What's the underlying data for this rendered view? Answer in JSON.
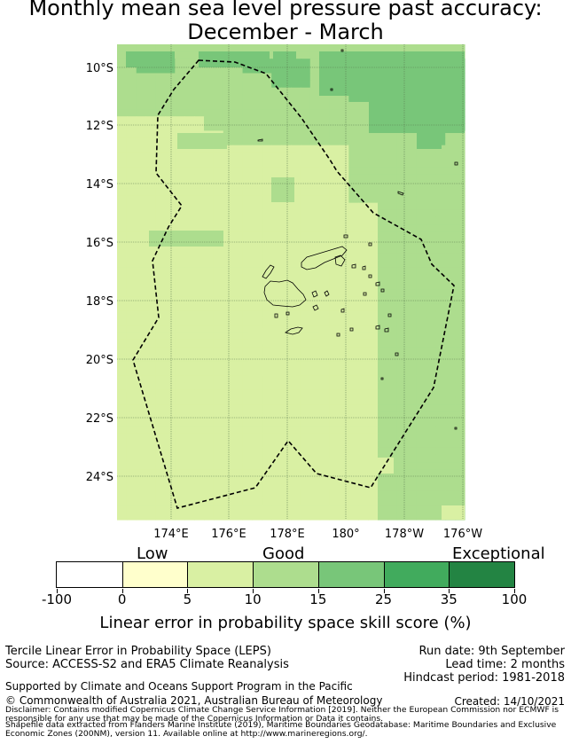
{
  "title_line1": "Monthly mean sea level pressure past accuracy:",
  "title_line2": "December - March",
  "map": {
    "lat_ticks": [
      "10°S",
      "12°S",
      "14°S",
      "16°S",
      "18°S",
      "20°S",
      "22°S",
      "24°S"
    ],
    "lon_ticks": [
      "174°E",
      "176°E",
      "178°E",
      "180°",
      "178°W",
      "176°W"
    ],
    "colors": {
      "c1": "#ffffcc",
      "c2": "#d9f0a3",
      "c3": "#addd8e",
      "c4": "#78c679",
      "c5": "#41ab5d",
      "c6": "#238443",
      "land": "#000000",
      "eez": "#000000"
    },
    "grid_rows": [
      "333333333333333333333333333333333333",
      "333333333333333333333333333333333333",
      "334444333333344444443333444444444444",
      "334444333333344444443333444444444444",
      "333333333333333344443333444444444444",
      "333333333333333344443333444444444444",
      "333333333333333333333333444444444444",
      "333333333333333333333333444444444444",
      "333333333333333333333333333344444444",
      "333333333333333333333333333344444444",
      "222222222333333333333333333344444444",
      "222222222333333333333333333344444444",
      "222222222223333333333333333333334433",
      "222222222223333333333333333333334433",
      "222222222222222222222222333333333333",
      "222222222222222222222222333333333333",
      "222222222222222222222222333333333333",
      "222222222222222222222222333333333333",
      "222222222222222222222222333333333333",
      "222222222222222222222222333333333333",
      "222222222222222222222222333333333333",
      "222222222222222222222222333333333333",
      "222222222222222222222222222333333333",
      "222222222222222222222222222333333333",
      "222222222222222222222222222333333333",
      "222222222222222222222222222333333333",
      "222222222222222222222222222333333333",
      "222222222222222222222222222333333333",
      "222222222222222222222222222333333333",
      "222222222222222222222222222333333333",
      "222222222222222222222222222333333333",
      "222222222222222222222222222333333333",
      "222222222222222222222222222333333333",
      "222222222222222222222222222333333333",
      "222222222222222222222222222333333333",
      "222222222222222222222222222333333333",
      "222222222222222222222222222333333333",
      "222222222222222222222222222333333333",
      "222222222222222222222222222333333333",
      "222222222222222222222222222333333333",
      "222222222222222222222222222333333333",
      "222222222222222222222222222333333333",
      "222222222222222222222222222333333333",
      "222222222222222222222222222333333333",
      "222222222222222222222222222333333333",
      "222222222222222222222222222333333333",
      "222222222222222222222222222333333333",
      "222222222222222222222222222333333333",
      "222222222222222222222222222333333333",
      "222222222222222222222222222333333333",
      "222222222222222222222222222333333333",
      "222222222222222222222222222333333333",
      "222222222222222222222222222333333333",
      "222222222222222222222222222333333333",
      "222222222222222222222222222333333333",
      "222222222222222222222222222333333333",
      "222222222222222222222222222333333333",
      "222222222222222222222222222333333333",
      "222222222222222222222222222333333333",
      "222222222222222222222222222333333333",
      "222222222222222222222222222333333333",
      "222222222222222222222222222333333333",
      "222222222222222222222222222333333333",
      "222222222222222222222222222333333333",
      "222222222222222222222222222333333333",
      "222222222222222222222222222333333333"
    ]
  },
  "legend": {
    "low": "Low",
    "good": "Good",
    "exceptional": "Exceptional",
    "ticks": [
      "-100",
      "0",
      "5",
      "10",
      "15",
      "25",
      "35",
      "100"
    ],
    "label": "Linear error in probability space skill score (%)"
  },
  "info": {
    "line1": "Tercile Linear Error in Probability Space (LEPS)",
    "line2": "Source: ACCESS-S2 and ERA5 Climate Reanalysis",
    "run_date": "Run date: 9th September",
    "lead_time": "Lead time: 2 months",
    "hindcast": "Hindcast period: 1981-2018",
    "support": "Supported by Climate and Oceans Support Program in the Pacific",
    "copyright": "© Commonwealth of Australia 2021, Australian Bureau of Meteorology",
    "created": "Created: 14/10/2021",
    "disclaimer1": "Disclaimer: Contains modified Copernicus Climate Change Service Information [2019]. Neither the European Commission nor ECMWF is",
    "disclaimer2": "responsible for any use that may be made of the Copernicus Information or Data it contains.",
    "shapefile1": "Shapefile data extracted from Flanders Marine Institute (2019), Maritime Boundaries Geodatabase: Maritime Boundaries and Exclusive",
    "shapefile2": "Economic Zones (200NM), version 11. Available online at http://www.marineregions.org/."
  }
}
